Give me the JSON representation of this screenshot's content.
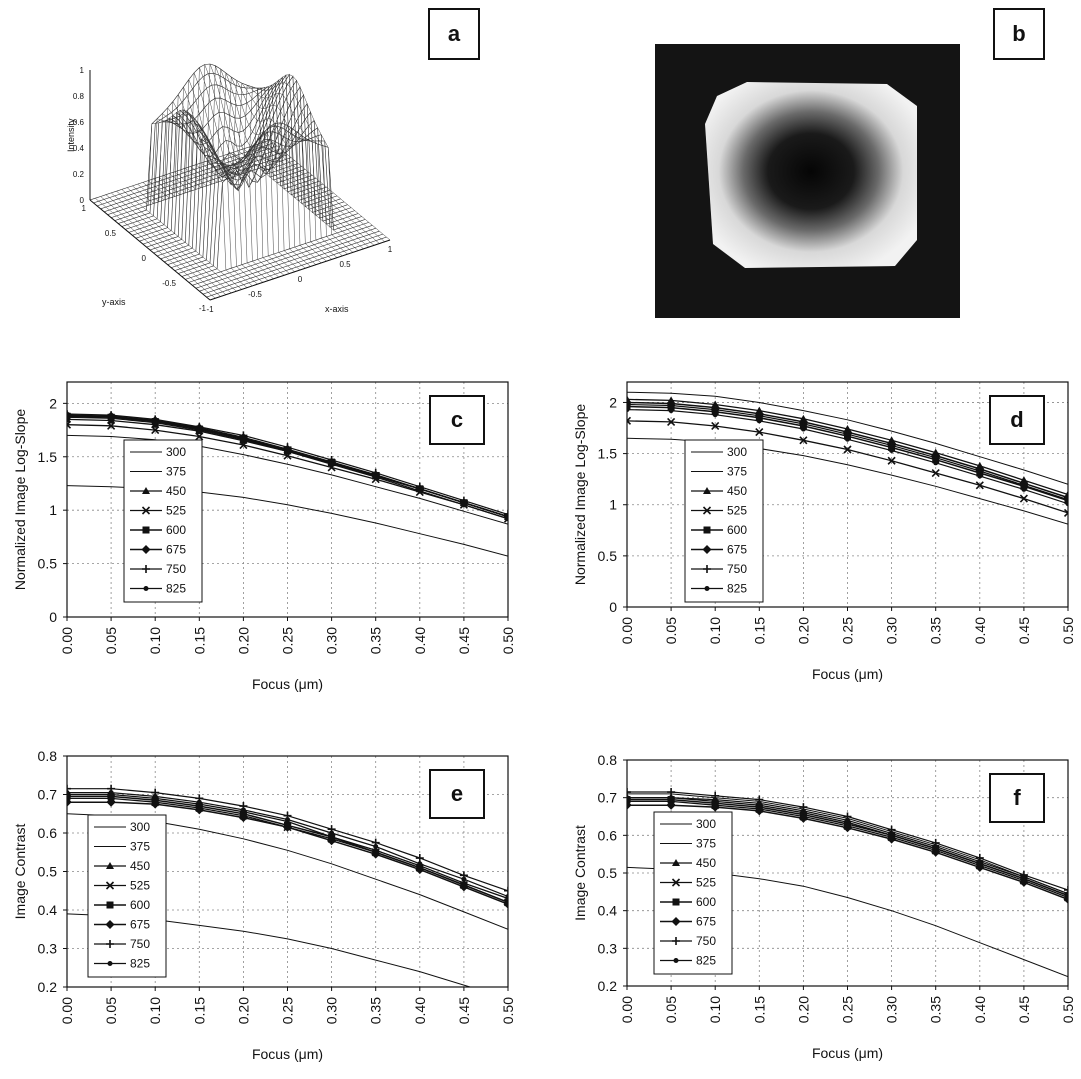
{
  "panel_labels": {
    "a": "a",
    "b": "b",
    "c": "c",
    "d": "d",
    "e": "e",
    "f": "f"
  },
  "surface": {
    "zlabel": "Intensity",
    "ylabel": "y-axis",
    "xlabel": "x-axis",
    "zticks": [
      "0",
      "0.2",
      "0.4",
      "0.6",
      "0.8",
      "1"
    ],
    "yticks": [
      "1",
      "0.5",
      "0",
      "-0.5",
      "-1"
    ],
    "xticks": [
      "-1",
      "-0.5",
      "0",
      "0.5",
      "1"
    ]
  },
  "chart_data": [
    {
      "id": "c",
      "type": "line",
      "xlabel": "Focus (μm)",
      "ylabel": "Normalized Image Log-Slope",
      "ylim": [
        0,
        2.2
      ],
      "xlim": [
        0,
        0.5
      ],
      "yticks": [
        "0",
        "0.5",
        "1",
        "1.5",
        "2"
      ],
      "xticks": [
        "0.00",
        "0.05",
        "0.10",
        "0.15",
        "0.20",
        "0.25",
        "0.30",
        "0.35",
        "0.40",
        "0.45",
        "0.50"
      ],
      "x": [
        0,
        0.05,
        0.1,
        0.15,
        0.2,
        0.25,
        0.3,
        0.35,
        0.4,
        0.45,
        0.5
      ],
      "grid": true,
      "legend": "left",
      "series": [
        {
          "name": "300",
          "values": [
            1.23,
            1.22,
            1.2,
            1.17,
            1.12,
            1.05,
            0.97,
            0.88,
            0.78,
            0.68,
            0.57
          ]
        },
        {
          "name": "375",
          "values": [
            1.7,
            1.69,
            1.66,
            1.6,
            1.52,
            1.43,
            1.33,
            1.22,
            1.11,
            0.99,
            0.87
          ]
        },
        {
          "name": "450",
          "values": [
            1.85,
            1.84,
            1.8,
            1.74,
            1.65,
            1.55,
            1.44,
            1.32,
            1.2,
            1.07,
            0.94
          ]
        },
        {
          "name": "525",
          "values": [
            1.8,
            1.79,
            1.75,
            1.69,
            1.61,
            1.51,
            1.4,
            1.29,
            1.17,
            1.05,
            0.92
          ]
        },
        {
          "name": "600",
          "values": [
            1.88,
            1.87,
            1.83,
            1.76,
            1.67,
            1.56,
            1.45,
            1.32,
            1.2,
            1.07,
            0.94
          ]
        },
        {
          "name": "675",
          "values": [
            1.89,
            1.88,
            1.84,
            1.77,
            1.68,
            1.57,
            1.45,
            1.33,
            1.2,
            1.07,
            0.94
          ]
        },
        {
          "name": "750",
          "values": [
            1.9,
            1.89,
            1.85,
            1.78,
            1.7,
            1.59,
            1.47,
            1.35,
            1.22,
            1.09,
            0.96
          ]
        },
        {
          "name": "825",
          "values": [
            1.87,
            1.86,
            1.82,
            1.75,
            1.66,
            1.55,
            1.43,
            1.31,
            1.18,
            1.05,
            0.92
          ]
        }
      ]
    },
    {
      "id": "d",
      "type": "line",
      "xlabel": "Focus (μm)",
      "ylabel": "Normalized Image Log-Slope",
      "ylim": [
        0,
        2.2
      ],
      "xlim": [
        0,
        0.5
      ],
      "yticks": [
        "0",
        "0.5",
        "1",
        "1.5",
        "2"
      ],
      "xticks": [
        "0.00",
        "0.05",
        "0.10",
        "0.15",
        "0.20",
        "0.25",
        "0.30",
        "0.35",
        "0.40",
        "0.45",
        "0.50"
      ],
      "x": [
        0,
        0.05,
        0.1,
        0.15,
        0.2,
        0.25,
        0.3,
        0.35,
        0.4,
        0.45,
        0.5
      ],
      "grid": true,
      "legend": "left",
      "series": [
        {
          "name": "300",
          "values": [
            1.65,
            1.64,
            1.61,
            1.55,
            1.48,
            1.39,
            1.29,
            1.18,
            1.06,
            0.94,
            0.81
          ]
        },
        {
          "name": "375",
          "values": [
            2.1,
            2.09,
            2.06,
            2.0,
            1.92,
            1.83,
            1.72,
            1.6,
            1.47,
            1.34,
            1.2
          ]
        },
        {
          "name": "450",
          "values": [
            2.03,
            2.02,
            1.98,
            1.92,
            1.84,
            1.74,
            1.63,
            1.51,
            1.38,
            1.24,
            1.1
          ]
        },
        {
          "name": "525",
          "values": [
            1.82,
            1.81,
            1.77,
            1.71,
            1.63,
            1.54,
            1.43,
            1.31,
            1.19,
            1.06,
            0.92
          ]
        },
        {
          "name": "600",
          "values": [
            1.96,
            1.95,
            1.91,
            1.85,
            1.77,
            1.67,
            1.56,
            1.44,
            1.31,
            1.18,
            1.04
          ]
        },
        {
          "name": "675",
          "values": [
            2.0,
            1.99,
            1.95,
            1.89,
            1.81,
            1.71,
            1.6,
            1.48,
            1.35,
            1.21,
            1.07
          ]
        },
        {
          "name": "750",
          "values": [
            1.98,
            1.97,
            1.93,
            1.87,
            1.79,
            1.69,
            1.58,
            1.46,
            1.33,
            1.19,
            1.05
          ]
        },
        {
          "name": "825",
          "values": [
            1.93,
            1.92,
            1.88,
            1.82,
            1.74,
            1.64,
            1.53,
            1.41,
            1.28,
            1.15,
            1.01
          ]
        }
      ]
    },
    {
      "id": "e",
      "type": "line",
      "xlabel": "Focus (μm)",
      "ylabel": "Image Contrast",
      "ylim": [
        0.2,
        0.8
      ],
      "xlim": [
        0,
        0.5
      ],
      "yticks": [
        "0.2",
        "0.3",
        "0.4",
        "0.5",
        "0.6",
        "0.7",
        "0.8"
      ],
      "xticks": [
        "0.00",
        "0.05",
        "0.10",
        "0.15",
        "0.20",
        "0.25",
        "0.30",
        "0.35",
        "0.40",
        "0.45",
        "0.50"
      ],
      "x": [
        0,
        0.05,
        0.1,
        0.15,
        0.2,
        0.25,
        0.3,
        0.35,
        0.4,
        0.45,
        0.5
      ],
      "grid": true,
      "legend": "left",
      "series": [
        {
          "name": "300",
          "values": [
            0.39,
            0.385,
            0.375,
            0.36,
            0.345,
            0.325,
            0.3,
            0.27,
            0.24,
            0.205,
            0.17
          ]
        },
        {
          "name": "375",
          "values": [
            0.65,
            0.645,
            0.63,
            0.61,
            0.585,
            0.555,
            0.52,
            0.48,
            0.44,
            0.395,
            0.35
          ]
        },
        {
          "name": "450",
          "values": [
            0.7,
            0.7,
            0.69,
            0.675,
            0.655,
            0.63,
            0.59,
            0.555,
            0.515,
            0.47,
            0.43
          ]
        },
        {
          "name": "525",
          "values": [
            0.69,
            0.69,
            0.68,
            0.665,
            0.645,
            0.615,
            0.585,
            0.55,
            0.51,
            0.465,
            0.42
          ]
        },
        {
          "name": "600",
          "values": [
            0.695,
            0.695,
            0.685,
            0.67,
            0.65,
            0.62,
            0.59,
            0.55,
            0.51,
            0.465,
            0.42
          ]
        },
        {
          "name": "675",
          "values": [
            0.68,
            0.68,
            0.675,
            0.66,
            0.64,
            0.615,
            0.58,
            0.545,
            0.505,
            0.46,
            0.415
          ]
        },
        {
          "name": "750",
          "values": [
            0.715,
            0.715,
            0.705,
            0.69,
            0.67,
            0.645,
            0.61,
            0.575,
            0.535,
            0.49,
            0.45
          ]
        },
        {
          "name": "825",
          "values": [
            0.705,
            0.705,
            0.695,
            0.68,
            0.66,
            0.635,
            0.6,
            0.565,
            0.52,
            0.48,
            0.435
          ]
        }
      ]
    },
    {
      "id": "f",
      "type": "line",
      "xlabel": "Focus (μm)",
      "ylabel": "Image Contrast",
      "ylim": [
        0.2,
        0.8
      ],
      "xlim": [
        0,
        0.5
      ],
      "yticks": [
        "0.2",
        "0.3",
        "0.4",
        "0.5",
        "0.6",
        "0.7",
        "0.8"
      ],
      "xticks": [
        "0.00",
        "0.05",
        "0.10",
        "0.15",
        "0.20",
        "0.25",
        "0.30",
        "0.35",
        "0.40",
        "0.45",
        "0.50"
      ],
      "x": [
        0,
        0.05,
        0.1,
        0.15,
        0.2,
        0.25,
        0.3,
        0.35,
        0.4,
        0.45,
        0.5
      ],
      "grid": true,
      "legend": "left",
      "series": [
        {
          "name": "300",
          "values": [
            0.515,
            0.51,
            0.5,
            0.485,
            0.465,
            0.435,
            0.4,
            0.36,
            0.315,
            0.27,
            0.225
          ]
        },
        {
          "name": "375",
          "values": [
            0.71,
            0.71,
            0.7,
            0.69,
            0.67,
            0.645,
            0.61,
            0.575,
            0.535,
            0.49,
            0.445
          ]
        },
        {
          "name": "450",
          "values": [
            0.7,
            0.7,
            0.69,
            0.68,
            0.66,
            0.635,
            0.6,
            0.565,
            0.525,
            0.485,
            0.44
          ]
        },
        {
          "name": "525",
          "values": [
            0.69,
            0.69,
            0.68,
            0.67,
            0.65,
            0.625,
            0.595,
            0.56,
            0.52,
            0.48,
            0.435
          ]
        },
        {
          "name": "600",
          "values": [
            0.695,
            0.695,
            0.685,
            0.675,
            0.655,
            0.63,
            0.6,
            0.565,
            0.525,
            0.485,
            0.44
          ]
        },
        {
          "name": "675",
          "values": [
            0.68,
            0.68,
            0.675,
            0.665,
            0.645,
            0.62,
            0.59,
            0.555,
            0.515,
            0.475,
            0.43
          ]
        },
        {
          "name": "750",
          "values": [
            0.715,
            0.715,
            0.705,
            0.695,
            0.675,
            0.65,
            0.615,
            0.58,
            0.54,
            0.495,
            0.455
          ]
        },
        {
          "name": "825",
          "values": [
            0.7,
            0.7,
            0.695,
            0.685,
            0.665,
            0.64,
            0.605,
            0.57,
            0.53,
            0.49,
            0.445
          ]
        }
      ]
    }
  ]
}
